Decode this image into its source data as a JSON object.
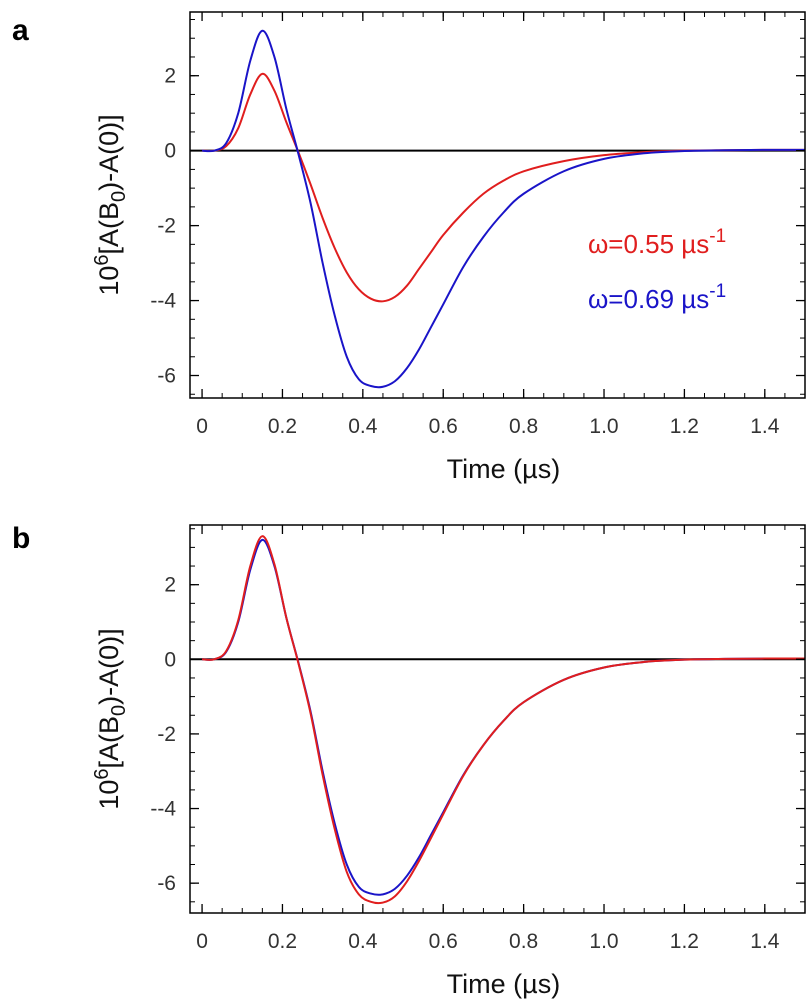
{
  "colors": {
    "red": "#e01e1e",
    "blue": "#1a14c8",
    "axis": "#000000",
    "zero_line": "#000000"
  },
  "chart_data": [
    {
      "panel": "a",
      "type": "line",
      "xlabel": "Time  (µs)",
      "ylabel": {
        "prefix": "10",
        "prefix_sup": "6",
        "main": "[A(B",
        "sub": "0",
        "end": ")-A(0)]"
      },
      "xlim": [
        -0.03,
        1.5
      ],
      "ylim": [
        -6.6,
        3.7
      ],
      "xticks": [
        0,
        0.2,
        0.4,
        0.6,
        0.8,
        1.0,
        1.2,
        1.4
      ],
      "xtick_labels": [
        "0",
        "0.2",
        "0.4",
        "0.6",
        "0.8",
        "1.0",
        "1.2",
        "1.4"
      ],
      "yticks": [
        2,
        0,
        -2,
        -4,
        -6
      ],
      "ytick_labels": [
        "2",
        "0",
        "-2",
        "--4",
        "-6"
      ],
      "zero_line": true,
      "annotations": [
        {
          "prefix": "ω=0.55 µs",
          "sup": "-1",
          "color": "#e01e1e"
        },
        {
          "prefix": "ω=0.69 µs",
          "sup": "-1",
          "color": "#1a14c8"
        }
      ],
      "series": [
        {
          "color": "#e01e1e",
          "x": [
            0,
            0.03,
            0.06,
            0.09,
            0.12,
            0.15,
            0.18,
            0.21,
            0.24,
            0.27,
            0.3,
            0.33,
            0.36,
            0.39,
            0.42,
            0.45,
            0.48,
            0.51,
            0.54,
            0.57,
            0.6,
            0.65,
            0.7,
            0.75,
            0.8,
            0.9,
            1.0,
            1.1,
            1.2,
            1.3,
            1.4,
            1.5
          ],
          "y": [
            0,
            0,
            0.12,
            0.6,
            1.5,
            2.05,
            1.6,
            0.75,
            -0.05,
            -0.9,
            -1.8,
            -2.6,
            -3.25,
            -3.7,
            -3.95,
            -4.02,
            -3.9,
            -3.6,
            -3.15,
            -2.7,
            -2.25,
            -1.65,
            -1.15,
            -0.8,
            -0.55,
            -0.28,
            -0.12,
            -0.04,
            0,
            0.01,
            0.02,
            0.02
          ]
        },
        {
          "color": "#1a14c8",
          "x": [
            0,
            0.03,
            0.06,
            0.09,
            0.12,
            0.15,
            0.18,
            0.21,
            0.24,
            0.27,
            0.3,
            0.33,
            0.36,
            0.39,
            0.42,
            0.45,
            0.48,
            0.51,
            0.54,
            0.57,
            0.6,
            0.65,
            0.7,
            0.75,
            0.8,
            0.9,
            1.0,
            1.1,
            1.2,
            1.3,
            1.4,
            1.5
          ],
          "y": [
            0,
            0,
            0.2,
            1.0,
            2.4,
            3.2,
            2.5,
            1.1,
            -0.1,
            -1.4,
            -3.0,
            -4.4,
            -5.5,
            -6.1,
            -6.28,
            -6.3,
            -6.15,
            -5.8,
            -5.3,
            -4.7,
            -4.1,
            -3.1,
            -2.3,
            -1.65,
            -1.15,
            -0.55,
            -0.22,
            -0.07,
            -0.01,
            0.01,
            0.02,
            0.02
          ]
        }
      ]
    },
    {
      "panel": "b",
      "type": "line",
      "xlabel": "Time  (µs)",
      "ylabel": {
        "prefix": "10",
        "prefix_sup": "6",
        "main": "[A(B",
        "sub": "0",
        "end": ")-A(0)]"
      },
      "xlim": [
        -0.03,
        1.5
      ],
      "ylim": [
        -6.8,
        3.6
      ],
      "xticks": [
        0,
        0.2,
        0.4,
        0.6,
        0.8,
        1.0,
        1.2,
        1.4
      ],
      "xtick_labels": [
        "0",
        "0.2",
        "0.4",
        "0.6",
        "0.8",
        "1.0",
        "1.2",
        "1.4"
      ],
      "yticks": [
        2,
        0,
        -2,
        -4,
        -6
      ],
      "ytick_labels": [
        "2",
        "0",
        "-2",
        "--4",
        "-6"
      ],
      "zero_line": true,
      "annotations": [],
      "series": [
        {
          "color": "#1a14c8",
          "x": [
            0,
            0.03,
            0.06,
            0.09,
            0.12,
            0.15,
            0.18,
            0.21,
            0.24,
            0.27,
            0.3,
            0.33,
            0.36,
            0.39,
            0.42,
            0.45,
            0.48,
            0.51,
            0.54,
            0.57,
            0.6,
            0.65,
            0.7,
            0.75,
            0.8,
            0.9,
            1.0,
            1.1,
            1.2,
            1.3,
            1.4,
            1.5
          ],
          "y": [
            0,
            0,
            0.2,
            1.0,
            2.4,
            3.2,
            2.5,
            1.1,
            -0.1,
            -1.4,
            -3.0,
            -4.4,
            -5.5,
            -6.1,
            -6.28,
            -6.3,
            -6.15,
            -5.8,
            -5.3,
            -4.7,
            -4.1,
            -3.1,
            -2.3,
            -1.65,
            -1.15,
            -0.55,
            -0.22,
            -0.07,
            -0.01,
            0.01,
            0.02,
            0.02
          ]
        },
        {
          "color": "#e01e1e",
          "x": [
            0,
            0.03,
            0.06,
            0.09,
            0.12,
            0.15,
            0.18,
            0.21,
            0.24,
            0.27,
            0.3,
            0.33,
            0.36,
            0.39,
            0.42,
            0.45,
            0.48,
            0.51,
            0.54,
            0.57,
            0.6,
            0.65,
            0.7,
            0.75,
            0.8,
            0.9,
            1.0,
            1.1,
            1.2,
            1.3,
            1.4,
            1.5
          ],
          "y": [
            0,
            0,
            0.22,
            1.05,
            2.5,
            3.3,
            2.55,
            1.1,
            -0.12,
            -1.45,
            -3.1,
            -4.55,
            -5.7,
            -6.3,
            -6.5,
            -6.52,
            -6.35,
            -5.95,
            -5.4,
            -4.78,
            -4.15,
            -3.12,
            -2.3,
            -1.65,
            -1.15,
            -0.55,
            -0.22,
            -0.07,
            -0.01,
            0.01,
            0.02,
            0.02
          ]
        }
      ]
    }
  ]
}
